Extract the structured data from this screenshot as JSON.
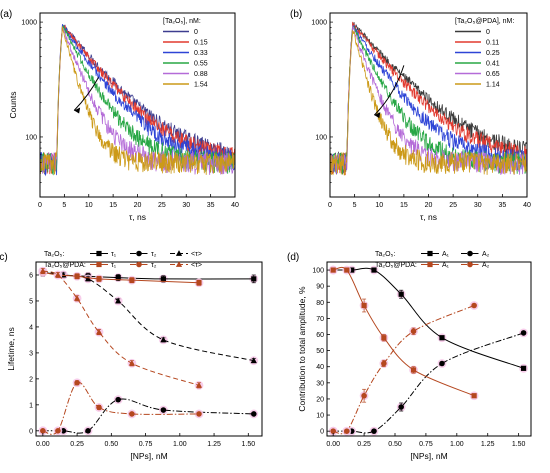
{
  "chart_data": [
    {
      "panel_label": "(a)",
      "type": "line",
      "xlabel": "τ, ns",
      "ylabel": "Counts",
      "xlim": [
        0,
        40
      ],
      "ylim": [
        30,
        1200
      ],
      "yscale": "log",
      "xticks": [
        0,
        5,
        10,
        15,
        20,
        25,
        30,
        35,
        40
      ],
      "yticks": [
        100,
        1000
      ],
      "legend_title": "[Ta₂O₅], nM:",
      "legend_position": "top-right",
      "grid": false,
      "series": [
        {
          "name": "0",
          "color": "#3d3d8f",
          "peak": 950,
          "lifetime_ns": 8.0
        },
        {
          "name": "0.15",
          "color": "#e23a2f",
          "peak": 950,
          "lifetime_ns": 7.5
        },
        {
          "name": "0.33",
          "color": "#2e44d6",
          "peak": 940,
          "lifetime_ns": 6.6
        },
        {
          "name": "0.55",
          "color": "#28a745",
          "peak": 930,
          "lifetime_ns": 5.0
        },
        {
          "name": "0.88",
          "color": "#b46bd8",
          "peak": 920,
          "lifetime_ns": 3.6
        },
        {
          "name": "1.54",
          "color": "#cc9a18",
          "peak": 900,
          "lifetime_ns": 2.6
        }
      ]
    },
    {
      "panel_label": "(b)",
      "type": "line",
      "xlabel": "τ, ns",
      "ylabel": "",
      "xlim": [
        0,
        40
      ],
      "ylim": [
        30,
        1200
      ],
      "yscale": "log",
      "xticks": [
        0,
        5,
        10,
        15,
        20,
        25,
        30,
        35,
        40
      ],
      "yticks": [
        100,
        1000
      ],
      "legend_title": "[Ta₂O₅@PDA], nM:",
      "legend_position": "top-right",
      "grid": false,
      "series": [
        {
          "name": "0",
          "color": "#3b3b3b",
          "peak": 980,
          "lifetime_ns": 8.6
        },
        {
          "name": "0.11",
          "color": "#e23a2f",
          "peak": 960,
          "lifetime_ns": 7.8
        },
        {
          "name": "0.25",
          "color": "#2e44d6",
          "peak": 940,
          "lifetime_ns": 6.2
        },
        {
          "name": "0.41",
          "color": "#28a745",
          "peak": 920,
          "lifetime_ns": 4.6
        },
        {
          "name": "0.65",
          "color": "#b46bd8",
          "peak": 900,
          "lifetime_ns": 3.4
        },
        {
          "name": "1.14",
          "color": "#cc9a18",
          "peak": 880,
          "lifetime_ns": 2.5
        }
      ]
    },
    {
      "panel_label": "(c)",
      "type": "scatter",
      "xlabel": "[NPs], nM",
      "ylabel": "Lifetime, ns",
      "xlim": [
        -0.05,
        1.6
      ],
      "ylim": [
        -0.2,
        6.5
      ],
      "xticks": [
        0.0,
        0.25,
        0.5,
        0.75,
        1.0,
        1.25,
        1.5
      ],
      "xtick_labels": [
        "0.00",
        "0.25",
        "0.50",
        "0.75",
        "1.00",
        "1.25",
        "1.50"
      ],
      "yticks": [
        0,
        1,
        2,
        3,
        4,
        5,
        6
      ],
      "legend_position": "top-left",
      "grid": false,
      "legend_rows": [
        {
          "label": "Ta₂O₅:",
          "entries": [
            "τ₁",
            "τ₂",
            "<τ>"
          ]
        },
        {
          "label": "Ta₂O₅@PDA:",
          "entries": [
            "τ₁",
            "τ₂",
            "<τ>"
          ]
        }
      ],
      "series": [
        {
          "name": "Ta₂O₅ τ₁",
          "color": "#000000",
          "marker": "square",
          "dash": "solid",
          "x": [
            0,
            0.15,
            0.33,
            0.55,
            0.88,
            1.54
          ],
          "y": [
            6.1,
            6.0,
            5.95,
            5.9,
            5.85,
            5.85
          ],
          "err": [
            0.15,
            0.12,
            0.12,
            0.12,
            0.12,
            0.15
          ]
        },
        {
          "name": "Ta₂O₅ τ₂",
          "color": "#000000",
          "marker": "circle",
          "dash": "dash-dot",
          "x": [
            0,
            0.15,
            0.33,
            0.55,
            0.88,
            1.54
          ],
          "y": [
            0.0,
            0.0,
            0.0,
            1.2,
            0.8,
            0.65
          ],
          "err": [
            0,
            0,
            0,
            0.05,
            0.05,
            0.05
          ]
        },
        {
          "name": "Ta₂O₅ <τ>",
          "color": "#000000",
          "marker": "triangle",
          "dash": "dash",
          "x": [
            0,
            0.15,
            0.33,
            0.55,
            0.88,
            1.54
          ],
          "y": [
            6.15,
            6.0,
            5.85,
            5.0,
            3.5,
            2.7
          ],
          "err": [
            0.08,
            0.08,
            0.08,
            0.08,
            0.08,
            0.08
          ]
        },
        {
          "name": "Ta₂O₅@PDA τ₁",
          "color": "#b5471f",
          "marker": "square",
          "dash": "solid",
          "x": [
            0,
            0.11,
            0.25,
            0.41,
            0.65,
            1.14
          ],
          "y": [
            6.1,
            6.0,
            5.95,
            5.85,
            5.8,
            5.7
          ],
          "err": [
            0.1,
            0.1,
            0.1,
            0.1,
            0.1,
            0.1
          ]
        },
        {
          "name": "Ta₂O₅@PDA τ₂",
          "color": "#b5471f",
          "marker": "circle",
          "dash": "dash-dot",
          "x": [
            0,
            0.11,
            0.25,
            0.41,
            0.65,
            1.14
          ],
          "y": [
            0.0,
            0.0,
            1.85,
            0.9,
            0.65,
            0.65
          ],
          "err": [
            0,
            0,
            0.08,
            0.08,
            0.05,
            0.05
          ]
        },
        {
          "name": "Ta₂O₅@PDA <τ>",
          "color": "#b5471f",
          "marker": "triangle",
          "dash": "dash",
          "x": [
            0,
            0.11,
            0.25,
            0.41,
            0.65,
            1.14
          ],
          "y": [
            6.15,
            6.0,
            5.1,
            3.8,
            2.6,
            1.75
          ],
          "err": [
            0.1,
            0.1,
            0.1,
            0.1,
            0.1,
            0.1
          ]
        }
      ]
    },
    {
      "panel_label": "(d)",
      "type": "scatter",
      "xlabel": "[NPs], nM",
      "ylabel": "Contribution to total amplitude, %",
      "xlim": [
        -0.05,
        1.6
      ],
      "ylim": [
        -3,
        105
      ],
      "xticks": [
        0.0,
        0.25,
        0.5,
        0.75,
        1.0,
        1.25,
        1.5
      ],
      "xtick_labels": [
        "0.00",
        "0.25",
        "0.50",
        "0.75",
        "1.00",
        "1.25",
        "1.50"
      ],
      "yticks": [
        0,
        10,
        20,
        30,
        40,
        50,
        60,
        70,
        80,
        90,
        100
      ],
      "legend_position": "top-right",
      "grid": false,
      "legend_rows": [
        {
          "label": "Ta₂O₅:",
          "entries": [
            "A₁",
            "A₂"
          ]
        },
        {
          "label": "Ta₂O₅@PDA:",
          "entries": [
            "A₁",
            "A₂"
          ]
        }
      ],
      "series": [
        {
          "name": "Ta₂O₅ A₁",
          "color": "#000000",
          "marker": "square",
          "dash": "solid",
          "x": [
            0,
            0.15,
            0.33,
            0.55,
            0.88,
            1.54
          ],
          "y": [
            100,
            100,
            100,
            85,
            58,
            39
          ],
          "err": [
            0.5,
            0.5,
            0.5,
            2.5,
            1,
            1
          ]
        },
        {
          "name": "Ta₂O₅ A₂",
          "color": "#000000",
          "marker": "circle",
          "dash": "dash-dot",
          "x": [
            0,
            0.15,
            0.33,
            0.55,
            0.88,
            1.54
          ],
          "y": [
            0,
            0,
            0,
            15,
            42,
            61
          ],
          "err": [
            0.5,
            0.5,
            0.5,
            2.5,
            1,
            1
          ]
        },
        {
          "name": "Ta₂O₅@PDA A₁",
          "color": "#b5471f",
          "marker": "square",
          "dash": "solid",
          "x": [
            0,
            0.11,
            0.25,
            0.41,
            0.65,
            1.14
          ],
          "y": [
            100,
            100,
            78,
            58,
            38,
            22
          ],
          "err": [
            0.5,
            0.5,
            4,
            2,
            2,
            1
          ]
        },
        {
          "name": "Ta₂O₅@PDA A₂",
          "color": "#b5471f",
          "marker": "circle",
          "dash": "dash-dot",
          "x": [
            0,
            0.11,
            0.25,
            0.41,
            0.65,
            1.14
          ],
          "y": [
            0,
            0,
            22,
            42,
            62,
            78
          ],
          "err": [
            0.5,
            0.5,
            4,
            2,
            2,
            1
          ]
        }
      ]
    }
  ]
}
